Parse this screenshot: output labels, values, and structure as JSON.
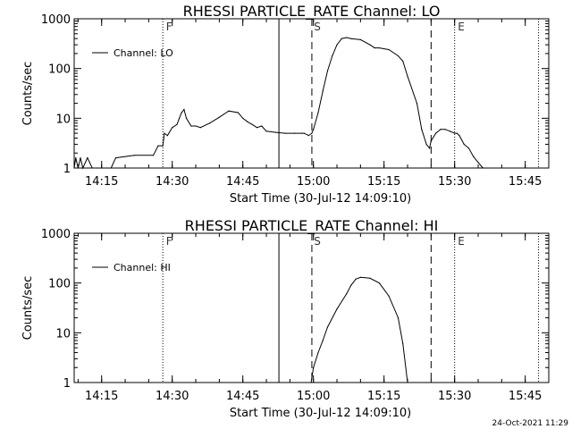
{
  "chart_data": [
    {
      "type": "line",
      "title": "RHESSI PARTICLE_RATE Channel: LO",
      "xlabel": "Start Time (30-Jul-12 14:09:10)",
      "ylabel": "Counts/sec",
      "yscale": "log",
      "xlim": [
        "14:09:10",
        "15:50:00"
      ],
      "ylim": [
        1,
        1000
      ],
      "x_ticks": [
        "14:15",
        "14:30",
        "14:45",
        "15:00",
        "15:15",
        "15:30",
        "15:45"
      ],
      "y_ticks": [
        "1",
        "10",
        "100",
        "1000"
      ],
      "legend": "top-left",
      "series": [
        {
          "name": "Channel: LO",
          "x": [
            "14:09:10",
            "14:09:30",
            "14:10:00",
            "14:10:30",
            "14:11:00",
            "14:12:00",
            "14:13:00",
            "14:14:00",
            "14:15:00",
            "14:17:00",
            "14:18:00",
            "14:22:00",
            "14:26:00",
            "14:27:00",
            "14:28:00",
            "14:28:20",
            "14:29:00",
            "14:30:00",
            "14:31:00",
            "14:31:30",
            "14:32:00",
            "14:32:30",
            "14:33:00",
            "14:34:00",
            "14:35:00",
            "14:36:00",
            "14:38:00",
            "14:40:00",
            "14:42:00",
            "14:44:00",
            "14:45:00",
            "14:46:00",
            "14:47:00",
            "14:48:00",
            "14:49:00",
            "14:50:00",
            "14:52:00",
            "14:54:00",
            "14:56:00",
            "14:57:30",
            "14:58:00",
            "14:59:00",
            "14:59:40",
            "15:00:00",
            "15:01:00",
            "15:02:00",
            "15:03:00",
            "15:04:00",
            "15:05:00",
            "15:06:00",
            "15:07:00",
            "15:08:00",
            "15:10:00",
            "15:12:00",
            "15:13:00",
            "15:14:00",
            "15:16:00",
            "15:18:00",
            "15:19:00",
            "15:20:00",
            "15:22:00",
            "15:23:00",
            "15:24:00",
            "15:24:40",
            "15:25:00",
            "15:26:00",
            "15:27:00",
            "15:28:00",
            "15:29:00",
            "15:30:00",
            "15:30:30",
            "15:31:00",
            "15:32:00",
            "15:33:00",
            "15:34:00",
            "15:35:00",
            "15:36:00"
          ],
          "y": [
            1,
            1.6,
            1,
            1.6,
            1,
            1.6,
            1,
            1,
            1,
            1,
            1.6,
            1.8,
            1.8,
            2.8,
            2.8,
            5,
            4.5,
            6.5,
            7.5,
            10,
            13,
            15,
            10,
            7,
            7,
            6.5,
            8,
            10.5,
            14,
            13,
            10,
            8.5,
            7.5,
            6.5,
            7,
            5.5,
            5.2,
            5,
            5,
            5,
            5,
            4.5,
            5,
            6,
            13,
            35,
            90,
            180,
            300,
            400,
            420,
            400,
            380,
            300,
            260,
            260,
            240,
            180,
            140,
            70,
            20,
            6,
            3,
            2.5,
            3.5,
            5,
            6,
            6,
            5.5,
            5,
            5,
            4.5,
            3,
            2.5,
            1.7,
            1.3,
            1
          ]
        }
      ]
    },
    {
      "type": "line",
      "title": "RHESSI PARTICLE_RATE Channel: HI",
      "xlabel": "Start Time (30-Jul-12 14:09:10)",
      "ylabel": "Counts/sec",
      "yscale": "log",
      "xlim": [
        "14:09:10",
        "15:50:00"
      ],
      "ylim": [
        1,
        1000
      ],
      "x_ticks": [
        "14:15",
        "14:30",
        "14:45",
        "15:00",
        "15:15",
        "15:30",
        "15:45"
      ],
      "y_ticks": [
        "1",
        "10",
        "100",
        "1000"
      ],
      "legend": "top-left",
      "series": [
        {
          "name": "Channel: HI",
          "x": [
            "14:59:30",
            "15:00:00",
            "15:01:00",
            "15:02:00",
            "15:03:00",
            "15:05:00",
            "15:07:00",
            "15:08:00",
            "15:09:00",
            "15:10:00",
            "15:12:00",
            "15:14:00",
            "15:16:00",
            "15:18:00",
            "15:19:00",
            "15:20:00"
          ],
          "y": [
            1,
            2,
            4,
            7,
            13,
            30,
            60,
            90,
            120,
            130,
            125,
            100,
            55,
            20,
            6,
            1
          ]
        }
      ]
    }
  ],
  "panels": [
    {
      "markers": {
        "F": "F",
        "S": "S",
        "E": "E"
      }
    },
    {
      "markers": {
        "F": "F",
        "S": "S",
        "E": "E"
      }
    }
  ],
  "footer": {
    "stamp": "24-Oct-2021 11:29"
  }
}
